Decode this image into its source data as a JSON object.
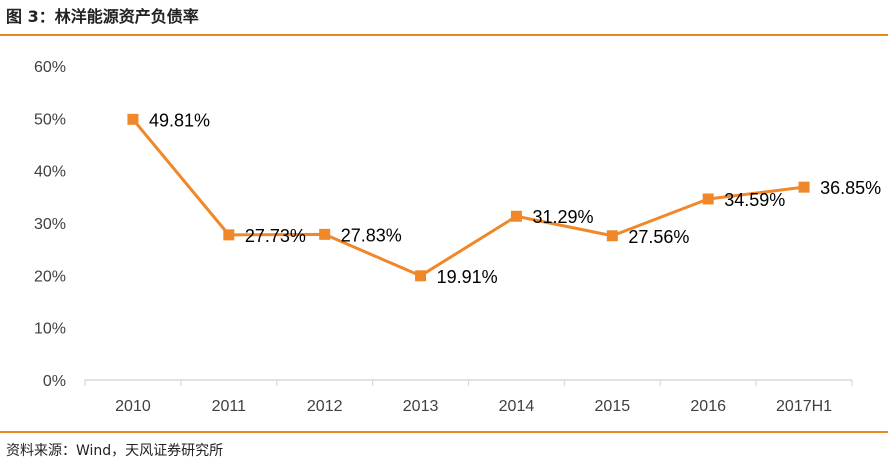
{
  "header": {
    "title": "图 3：林洋能源资产负债率"
  },
  "footer": {
    "source": "资料来源：Wind，天风证券研究所"
  },
  "colors": {
    "accent": "#E8891D",
    "series": "#F0882A",
    "axis": "#D9D9D9"
  },
  "chart_data": {
    "type": "line",
    "categories": [
      "2010",
      "2011",
      "2012",
      "2013",
      "2014",
      "2015",
      "2016",
      "2017H1"
    ],
    "series": [
      {
        "values": [
          49.81,
          27.73,
          27.83,
          19.91,
          31.29,
          27.56,
          34.59,
          36.85
        ]
      }
    ],
    "data_labels": [
      "49.81%",
      "27.73%",
      "27.83%",
      "19.91%",
      "31.29%",
      "27.56%",
      "34.59%",
      "36.85%"
    ],
    "y_tick_labels": [
      "0%",
      "10%",
      "20%",
      "30%",
      "40%",
      "50%",
      "60%"
    ],
    "ylim": [
      0,
      60
    ],
    "y_unit": "%",
    "grid": false,
    "marker": "square"
  }
}
